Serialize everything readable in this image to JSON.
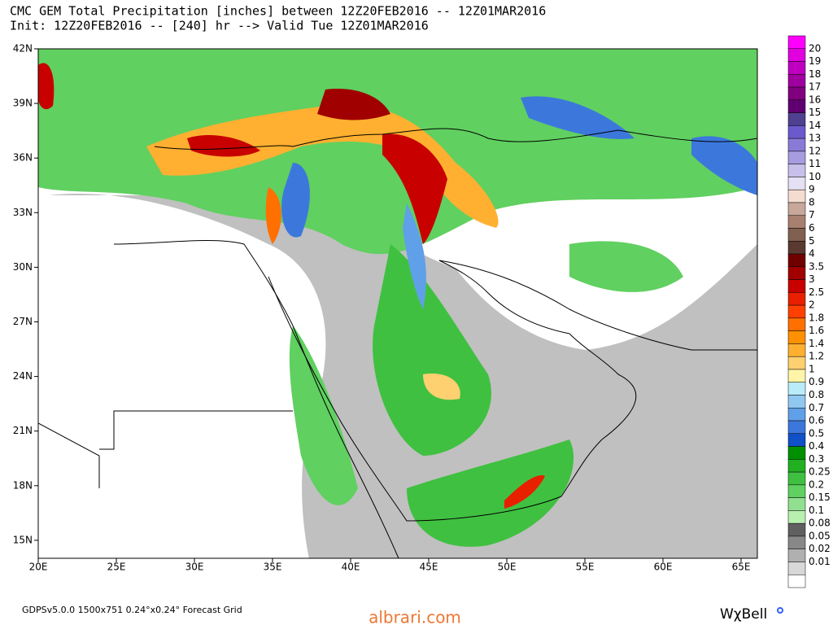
{
  "header": {
    "line1": "CMC GEM Total Precipitation [inches] between 12Z20FEB2016 -- 12Z01MAR2016",
    "line2": "Init: 12Z20FEB2016 -- [240] hr --> Valid Tue 12Z01MAR2016"
  },
  "map": {
    "lat_labels": [
      "42N",
      "39N",
      "36N",
      "33N",
      "30N",
      "27N",
      "24N",
      "21N",
      "18N",
      "15N"
    ],
    "lon_labels": [
      "20E",
      "25E",
      "30E",
      "35E",
      "40E",
      "45E",
      "50E",
      "55E",
      "60E",
      "65E"
    ]
  },
  "colorbar": {
    "labels": [
      "20",
      "19",
      "18",
      "17",
      "16",
      "15",
      "14",
      "13",
      "12",
      "11",
      "10",
      "9",
      "8",
      "7",
      "6",
      "5",
      "4",
      "3.5",
      "3",
      "2.5",
      "2",
      "1.8",
      "1.6",
      "1.4",
      "1.2",
      "1",
      "0.9",
      "0.8",
      "0.7",
      "0.6",
      "0.5",
      "0.4",
      "0.3",
      "0.25",
      "0.2",
      "0.15",
      "0.1",
      "0.08",
      "0.05",
      "0.02",
      "0.01"
    ],
    "colors": [
      "#ff00ff",
      "#e000e0",
      "#c000c0",
      "#a000a0",
      "#800080",
      "#600070",
      "#504090",
      "#6a5acd",
      "#8a7ad8",
      "#a89ce0",
      "#c8c0ea",
      "#e6e0f4",
      "#f5dcd0",
      "#c8a89a",
      "#a88070",
      "#806050",
      "#5a3a30",
      "#700000",
      "#a00000",
      "#c80000",
      "#e82000",
      "#ff4000",
      "#ff7000",
      "#ff9000",
      "#ffb030",
      "#ffd070",
      "#fff4a8",
      "#b8ecf8",
      "#90c8f0",
      "#60a0e8",
      "#3c78dc",
      "#1050c8",
      "#009000",
      "#20b020",
      "#40c040",
      "#60d060",
      "#90e090",
      "#b8f0b0",
      "#606060",
      "#888888",
      "#b0b0b0",
      "#d8d8d8",
      "#ffffff"
    ]
  },
  "footer": {
    "grid": "GDPSv5.0.0 1500x751 0.24°x0.24° Forecast Grid",
    "site": "albrari.com",
    "brand": "WχBell"
  }
}
